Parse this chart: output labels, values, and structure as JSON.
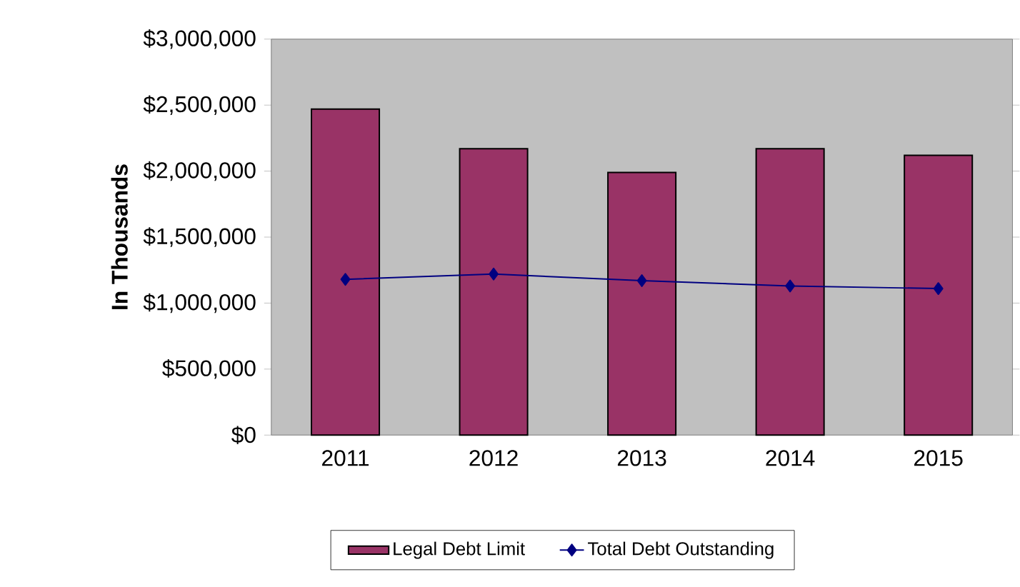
{
  "chart_data": {
    "type": "bar",
    "ylabel": "In Thousands",
    "categories": [
      "2011",
      "2012",
      "2013",
      "2014",
      "2015"
    ],
    "series": [
      {
        "name": "Legal Debt Limit",
        "color": "#993366",
        "values": [
          2470000,
          2170000,
          1990000,
          2170000,
          2120000
        ]
      },
      {
        "name": "Total Debt Outstanding",
        "type": "line",
        "color": "#000080",
        "marker": "diamond",
        "values": [
          1180000,
          1220000,
          1170000,
          1130000,
          1110000
        ]
      }
    ],
    "ylim": [
      0,
      3000000
    ],
    "yticks": [
      {
        "value": 0,
        "label": "$0"
      },
      {
        "value": 500000,
        "label": "$500,000"
      },
      {
        "value": 1000000,
        "label": "$1,000,000"
      },
      {
        "value": 1500000,
        "label": "$1,500,000"
      },
      {
        "value": 2000000,
        "label": "$2,000,000"
      },
      {
        "value": 2500000,
        "label": "$2,500,000"
      },
      {
        "value": 3000000,
        "label": "$3,000,000"
      }
    ],
    "grid": false,
    "legend": "bottom"
  }
}
